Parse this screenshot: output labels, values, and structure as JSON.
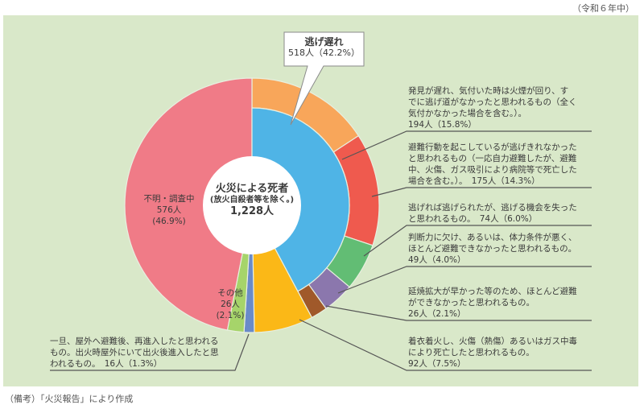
{
  "header": {
    "period_note": "（令和６年中）"
  },
  "footer": {
    "source_note": "（備考）「火災報告」により作成"
  },
  "center": {
    "title": "火災による死者",
    "subtitle": "(放火自殺者等を除く。)",
    "total": "1,228人"
  },
  "bubble": {
    "title": "逃げ遅れ",
    "value": "518人（42.2%）"
  },
  "labels": {
    "unknown": [
      "不明・調査中",
      "576人",
      "(46.9%)"
    ],
    "other": [
      "その他",
      "26人",
      "(2.1%)"
    ],
    "late_discovery": [
      "発見が遅れ、気付いた時は火煙が回り、す",
      "でに逃げ道がなかったと思われるもの（全く",
      "気付かなかった場合を含む。）。",
      "194人（15.8%）"
    ],
    "failed_escape": [
      "避難行動を起こしているが逃げきれなかった",
      "と思われるもの（一応自力避難したが、避難",
      "中、火傷、ガス吸引により病院等で死亡した",
      "場合を含む。）。　175人（14.3%）"
    ],
    "missed_chance": [
      "逃げれば逃げられたが、逃げる機会を失った",
      "と思われるもの。　74人（6.0%）"
    ],
    "impaired": [
      "判断力に欠け、あるいは、体力条件が悪く、",
      "ほとんど避難できなかったと思われるもの。",
      "49人（4.0%）"
    ],
    "rapid_spread": [
      "延焼拡大が早かった等のため、ほとんど避難",
      "ができなかったと思われるもの。",
      "26人（2.1%）"
    ],
    "clothing_fire": [
      "着衣着火し、火傷（熱傷）あるいはガス中毒",
      "により死亡したと思われるもの。",
      "92人（7.5%）"
    ],
    "reentry": [
      "一旦、屋外へ避難後、再進入したと思われる",
      "もの。出火時屋外にいて出火後進入したと思",
      "われるもの。　16人（1.3%）"
    ]
  },
  "colors": {
    "panel_bg": "#d9e8c9",
    "escape_late_inner": "#4fb4e6",
    "late_discovery": "#f8a65a",
    "failed_escape": "#ef5a4e",
    "missed_chance": "#62bd74",
    "impaired": "#8b77ad",
    "rapid_spread": "#a0592a",
    "clothing_fire": "#fbb817",
    "reentry": "#6a8bc9",
    "other": "#a6d46a",
    "unknown": "#f07b87"
  },
  "chart_data": {
    "type": "pie",
    "title": "火災による死者（放火自殺者等を除く。）1,228人",
    "subtitle": "令和６年中",
    "total": 1228,
    "inner_ring": [
      {
        "name": "逃げ遅れ",
        "value": 518,
        "percent": 42.2
      }
    ],
    "series": [
      {
        "name": "発見が遅れ、気付いた時は火煙が回り、すでに逃げ道がなかったと思われるもの（全く気付かなかった場合を含む。）",
        "group": "逃げ遅れ",
        "value": 194,
        "percent": 15.8
      },
      {
        "name": "避難行動を起こしているが逃げきれなかったと思われるもの（一応自力避難したが、避難中、火傷、ガス吸引により病院等で死亡した場合を含む。）",
        "group": "逃げ遅れ",
        "value": 175,
        "percent": 14.3
      },
      {
        "name": "逃げれば逃げられたが、逃げる機会を失ったと思われるもの",
        "group": "逃げ遅れ",
        "value": 74,
        "percent": 6.0
      },
      {
        "name": "判断力に欠け、あるいは、体力条件が悪く、ほとんど避難できなかったと思われるもの",
        "group": "逃げ遅れ",
        "value": 49,
        "percent": 4.0
      },
      {
        "name": "延焼拡大が早かった等のため、ほとんど避難ができなかったと思われるもの",
        "group": "逃げ遅れ",
        "value": 26,
        "percent": 2.1
      },
      {
        "name": "着衣着火し、火傷（熱傷）あるいはガス中毒により死亡したと思われるもの",
        "value": 92,
        "percent": 7.5
      },
      {
        "name": "一旦、屋外へ避難後、再進入したと思われるもの。出火時屋外にいて出火後進入したと思われるもの",
        "value": 16,
        "percent": 1.3
      },
      {
        "name": "その他",
        "value": 26,
        "percent": 2.1
      },
      {
        "name": "不明・調査中",
        "value": 576,
        "percent": 46.9
      }
    ],
    "source": "「火災報告」により作成"
  }
}
